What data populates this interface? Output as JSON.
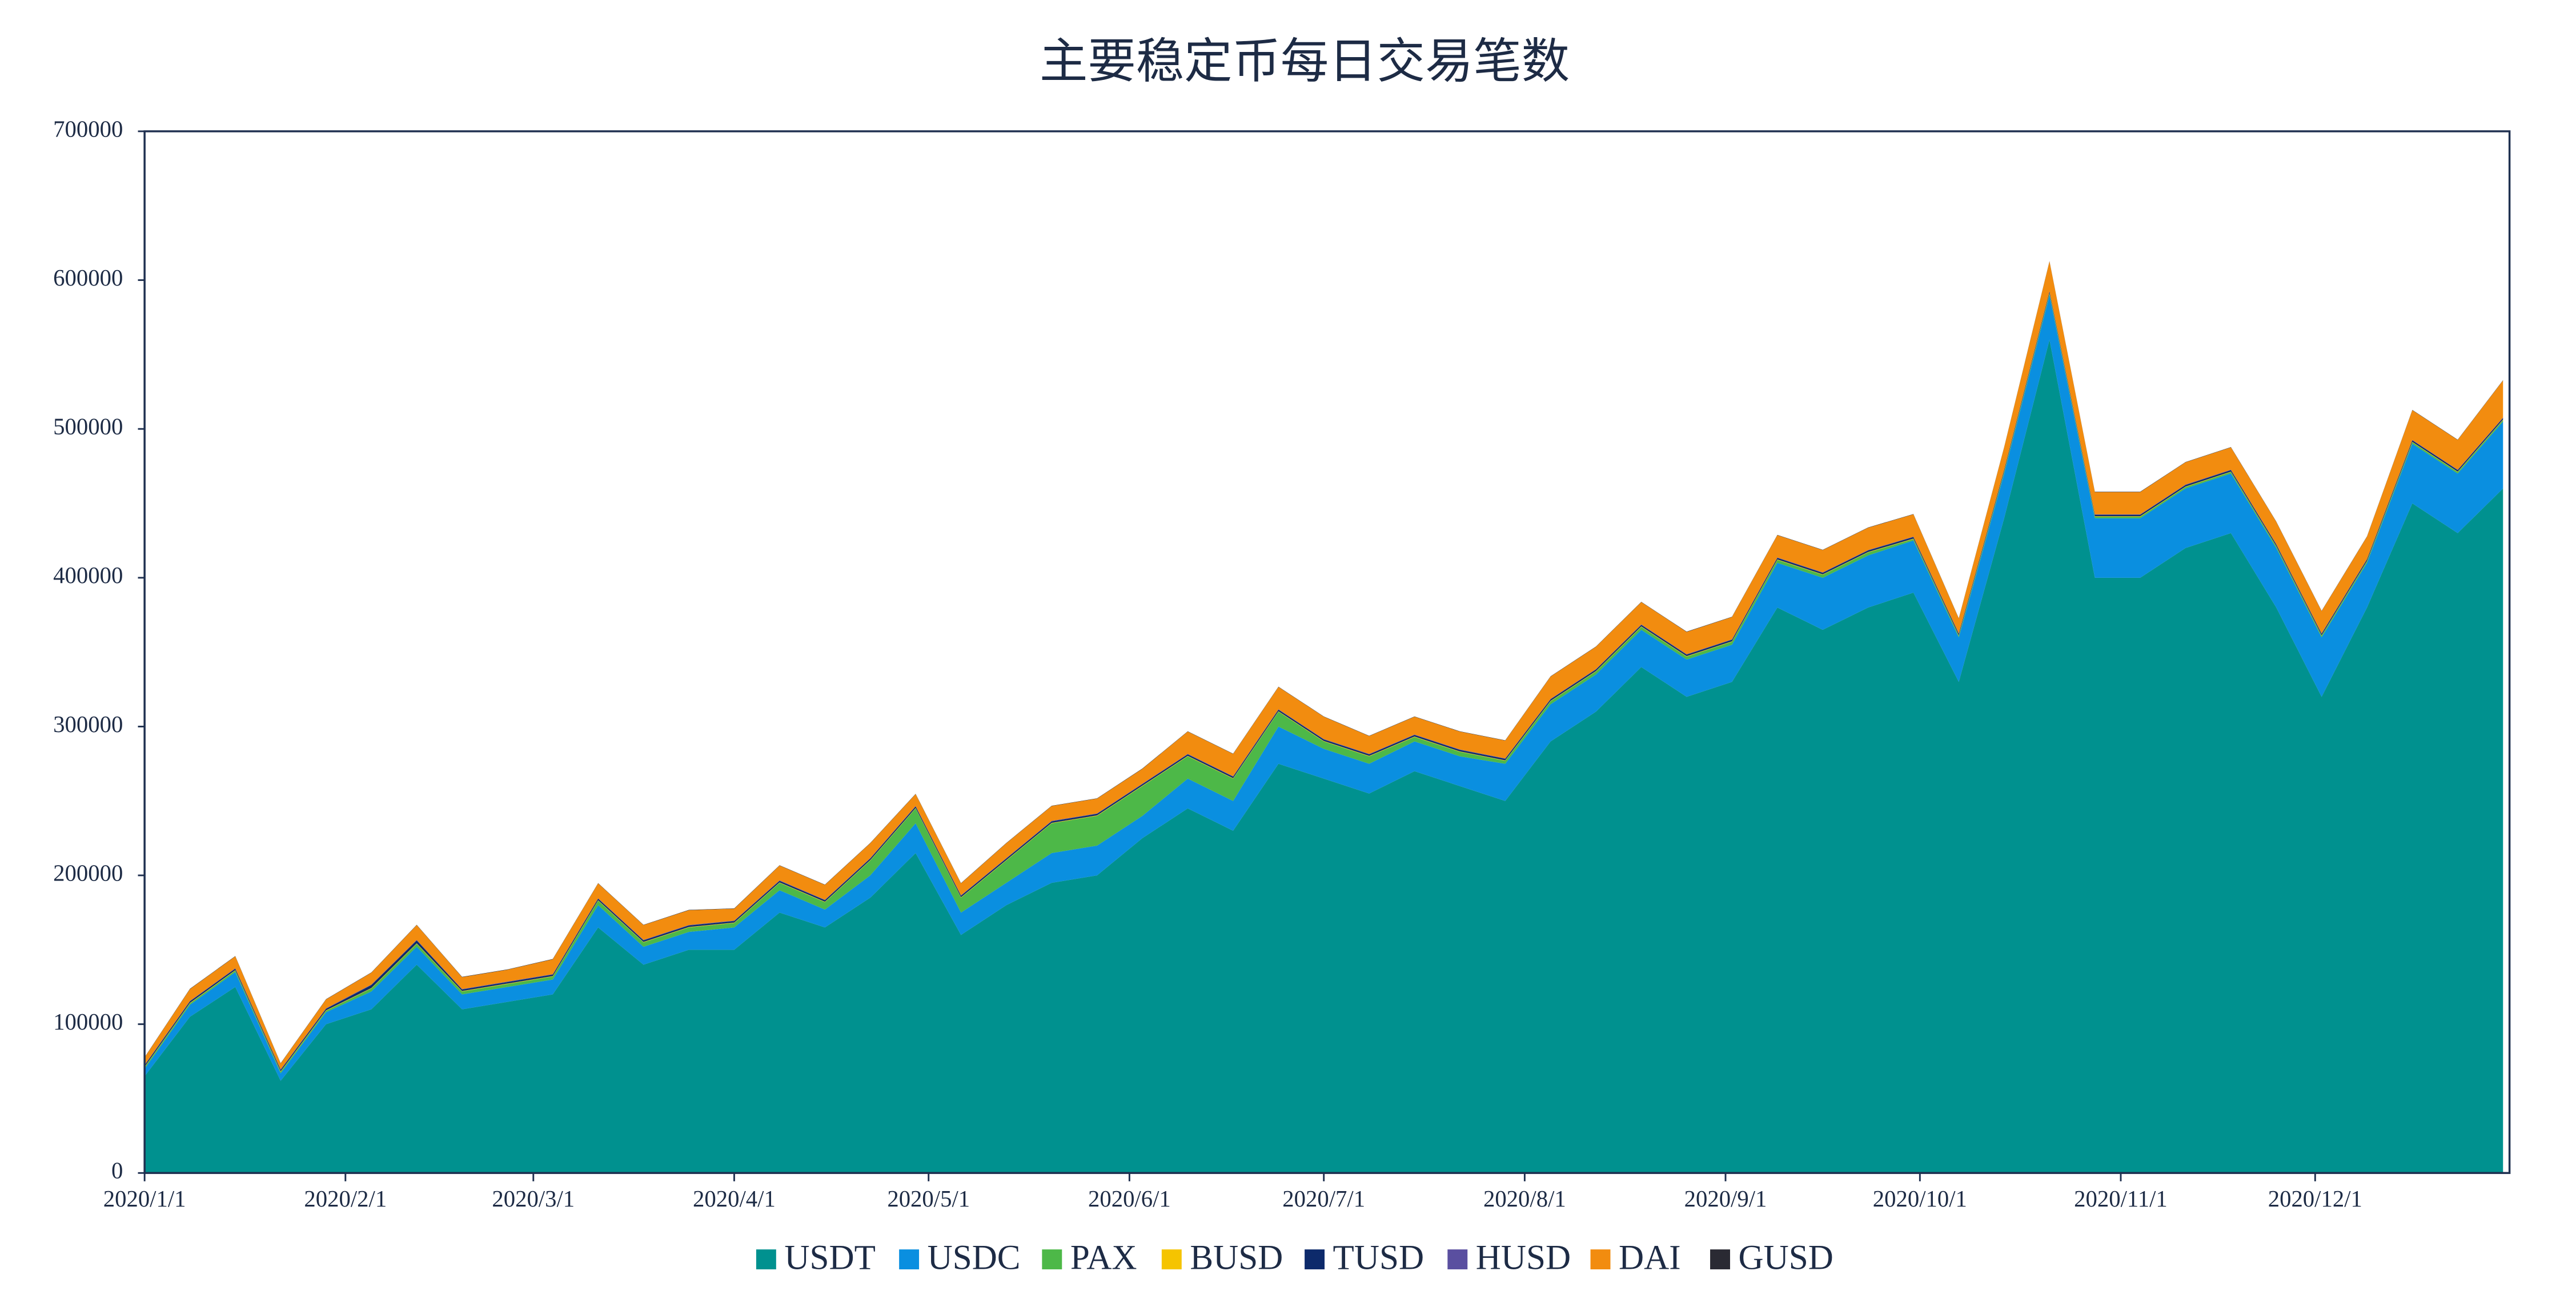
{
  "chart_data": {
    "type": "stacked-area",
    "title": "主要稳定币每日交易笔数",
    "x": [
      "2020/1/1",
      "2020/1/8",
      "2020/1/15",
      "2020/1/22",
      "2020/1/29",
      "2020/2/5",
      "2020/2/12",
      "2020/2/19",
      "2020/2/26",
      "2020/3/4",
      "2020/3/11",
      "2020/3/18",
      "2020/3/25",
      "2020/4/1",
      "2020/4/8",
      "2020/4/15",
      "2020/4/22",
      "2020/4/29",
      "2020/5/6",
      "2020/5/13",
      "2020/5/20",
      "2020/5/27",
      "2020/6/3",
      "2020/6/10",
      "2020/6/17",
      "2020/6/24",
      "2020/7/1",
      "2020/7/8",
      "2020/7/15",
      "2020/7/22",
      "2020/7/29",
      "2020/8/5",
      "2020/8/12",
      "2020/8/19",
      "2020/8/26",
      "2020/9/2",
      "2020/9/9",
      "2020/9/16",
      "2020/9/23",
      "2020/9/30",
      "2020/10/7",
      "2020/10/14",
      "2020/10/21",
      "2020/10/28",
      "2020/11/4",
      "2020/11/11",
      "2020/11/18",
      "2020/11/25",
      "2020/12/2",
      "2020/12/9",
      "2020/12/16",
      "2020/12/23",
      "2020/12/30"
    ],
    "xlim": [
      "2020/1/1",
      "2020/12/31"
    ],
    "xticks": [
      "2020/1/1",
      "2020/2/1",
      "2020/3/1",
      "2020/4/1",
      "2020/5/1",
      "2020/6/1",
      "2020/7/1",
      "2020/8/1",
      "2020/9/1",
      "2020/10/1",
      "2020/11/1",
      "2020/12/1"
    ],
    "ylim": [
      0,
      700000
    ],
    "yticks": [
      0,
      100000,
      200000,
      300000,
      400000,
      500000,
      600000,
      700000
    ],
    "series": [
      {
        "name": "USDT",
        "color": "#00918f",
        "values": [
          65000,
          105000,
          125000,
          62000,
          100000,
          110000,
          140000,
          110000,
          115000,
          120000,
          165000,
          140000,
          150000,
          150000,
          175000,
          165000,
          185000,
          215000,
          160000,
          180000,
          195000,
          200000,
          225000,
          245000,
          230000,
          275000,
          265000,
          255000,
          270000,
          260000,
          250000,
          290000,
          310000,
          340000,
          320000,
          330000,
          380000,
          365000,
          380000,
          390000,
          330000,
          440000,
          560000,
          400000,
          400000,
          420000,
          430000,
          380000,
          320000,
          380000,
          450000,
          430000,
          460000
        ]
      },
      {
        "name": "USDC",
        "color": "#0a8fe0",
        "values": [
          5000,
          8000,
          10000,
          5000,
          8000,
          12000,
          12000,
          10000,
          10000,
          10000,
          15000,
          12000,
          12000,
          15000,
          15000,
          12000,
          15000,
          20000,
          15000,
          15000,
          20000,
          20000,
          15000,
          20000,
          20000,
          25000,
          20000,
          20000,
          20000,
          20000,
          25000,
          25000,
          25000,
          25000,
          25000,
          25000,
          30000,
          35000,
          35000,
          35000,
          30000,
          30000,
          30000,
          40000,
          40000,
          40000,
          40000,
          40000,
          40000,
          30000,
          40000,
          40000,
          45000
        ]
      },
      {
        "name": "PAX",
        "color": "#4db848",
        "values": [
          1000,
          1000,
          1000,
          1000,
          1000,
          2000,
          2000,
          2000,
          2000,
          2000,
          3000,
          3000,
          3000,
          3000,
          5000,
          5000,
          10000,
          10000,
          10000,
          15000,
          20000,
          20000,
          20000,
          15000,
          15000,
          10000,
          5000,
          5000,
          3000,
          3000,
          2000,
          2000,
          2000,
          2000,
          2000,
          2000,
          2000,
          2000,
          2000,
          1000,
          1000,
          1000,
          1000,
          1000,
          1000,
          1000,
          1000,
          1000,
          1000,
          1000,
          1000,
          1000,
          1000
        ]
      },
      {
        "name": "BUSD",
        "color": "#f5c400",
        "values": [
          300,
          300,
          300,
          300,
          300,
          300,
          300,
          300,
          300,
          300,
          300,
          300,
          300,
          300,
          300,
          300,
          300,
          300,
          300,
          300,
          300,
          300,
          300,
          300,
          300,
          300,
          300,
          300,
          300,
          300,
          300,
          300,
          300,
          300,
          300,
          300,
          300,
          300,
          300,
          300,
          300,
          300,
          300,
          300,
          300,
          300,
          300,
          300,
          300,
          300,
          300,
          300,
          300
        ]
      },
      {
        "name": "TUSD",
        "color": "#0d2a6b",
        "values": [
          1000,
          1000,
          1000,
          1000,
          1000,
          2000,
          2000,
          1000,
          1000,
          1000,
          1000,
          1000,
          1000,
          1000,
          1000,
          1000,
          1000,
          1000,
          1000,
          1000,
          1000,
          1000,
          1000,
          1000,
          1000,
          1000,
          1000,
          1000,
          1000,
          1000,
          1000,
          1000,
          1000,
          1000,
          1000,
          1000,
          1000,
          1000,
          1000,
          1000,
          1000,
          1000,
          1000,
          1000,
          1000,
          1000,
          1000,
          1000,
          1000,
          1000,
          1000,
          1000,
          1000
        ]
      },
      {
        "name": "HUSD",
        "color": "#5a4fa0",
        "values": [
          300,
          300,
          300,
          300,
          300,
          300,
          300,
          300,
          300,
          300,
          300,
          300,
          300,
          300,
          300,
          300,
          300,
          300,
          300,
          300,
          300,
          300,
          300,
          300,
          300,
          300,
          300,
          300,
          300,
          300,
          300,
          300,
          300,
          300,
          300,
          300,
          300,
          300,
          300,
          300,
          300,
          300,
          300,
          300,
          300,
          300,
          300,
          300,
          300,
          300,
          300,
          300,
          300
        ]
      },
      {
        "name": "DAI",
        "color": "#f28c0f",
        "values": [
          5000,
          8000,
          8000,
          4000,
          6000,
          8000,
          10000,
          8000,
          8000,
          10000,
          10000,
          10000,
          10000,
          8000,
          10000,
          10000,
          10000,
          8000,
          8000,
          10000,
          10000,
          10000,
          10000,
          15000,
          15000,
          15000,
          15000,
          12000,
          12000,
          12000,
          12000,
          15000,
          15000,
          15000,
          15000,
          15000,
          15000,
          15000,
          15000,
          15000,
          10000,
          15000,
          20000,
          15000,
          15000,
          15000,
          15000,
          15000,
          15000,
          15000,
          20000,
          20000,
          25000
        ]
      },
      {
        "name": "GUSD",
        "color": "#2a2a33",
        "values": [
          200,
          200,
          200,
          200,
          200,
          200,
          200,
          200,
          200,
          200,
          200,
          200,
          200,
          200,
          200,
          200,
          200,
          200,
          200,
          200,
          200,
          200,
          200,
          200,
          200,
          200,
          200,
          200,
          200,
          200,
          200,
          200,
          200,
          200,
          200,
          200,
          200,
          200,
          200,
          200,
          200,
          200,
          200,
          200,
          200,
          200,
          200,
          200,
          200,
          200,
          200,
          200,
          200
        ]
      }
    ]
  }
}
